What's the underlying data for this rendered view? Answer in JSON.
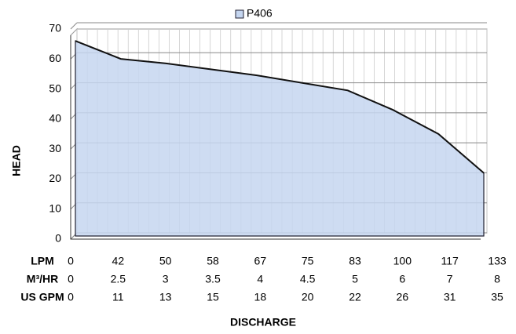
{
  "chart_data": {
    "type": "area",
    "legend_name": "P406",
    "series": [
      {
        "name": "P406",
        "color": "#c5d6f0",
        "values": [
          65,
          59,
          57.5,
          55.5,
          53.5,
          51,
          48.5,
          42,
          34,
          21
        ]
      }
    ],
    "category_label": "LPM",
    "categories": [
      "0",
      "42",
      "50",
      "58",
      "67",
      "75",
      "83",
      "100",
      "117",
      "133"
    ],
    "category_rows": [
      {
        "label": "M³/HR",
        "values": [
          "0",
          "2.5",
          "3",
          "3.5",
          "4",
          "4.5",
          "5",
          "6",
          "7",
          "8"
        ]
      },
      {
        "label": "US GPM",
        "values": [
          "0",
          "11",
          "13",
          "15",
          "18",
          "20",
          "22",
          "26",
          "31",
          "35"
        ]
      }
    ],
    "ylim": [
      0,
      70
    ],
    "yticks": [
      0,
      10,
      20,
      30,
      40,
      50,
      60,
      70
    ],
    "y_label": "HEAD",
    "x_label": "DISCHARGE",
    "grid": true
  }
}
